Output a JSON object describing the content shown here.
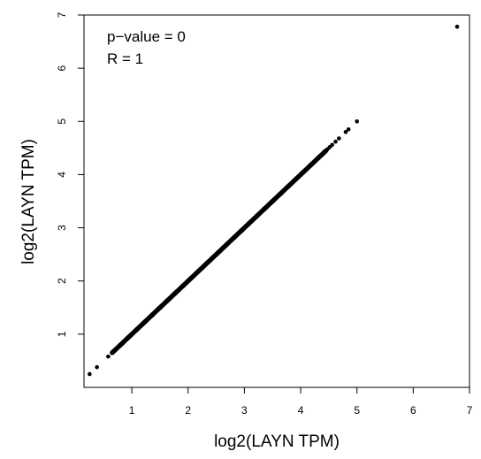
{
  "chart_data": {
    "type": "scatter",
    "title": "",
    "xlabel": "log2(LAYN TPM)",
    "ylabel": "log2(LAYN TPM)",
    "xlim": [
      0.15,
      7.0
    ],
    "ylim": [
      0.0,
      7.0
    ],
    "xticks": [
      1,
      2,
      3,
      4,
      5,
      6,
      7
    ],
    "yticks": [
      1,
      2,
      3,
      4,
      5,
      6,
      7
    ],
    "xtick_labels": [
      "1",
      "2",
      "3",
      "4",
      "5",
      "6",
      "7"
    ],
    "ytick_labels": [
      "1",
      "2",
      "3",
      "4",
      "5",
      "6",
      "7"
    ],
    "grid": false,
    "annotations": [
      "p−value = 0",
      "R = 1"
    ],
    "point_color": "#000000",
    "series": [
      {
        "dense_band": {
          "x_start": 0.65,
          "x_end": 4.45
        },
        "sparse_points": [
          {
            "x": 0.25,
            "y": 0.25
          },
          {
            "x": 0.38,
            "y": 0.38
          },
          {
            "x": 0.58,
            "y": 0.58
          },
          {
            "x": 4.48,
            "y": 4.48
          },
          {
            "x": 4.52,
            "y": 4.52
          },
          {
            "x": 4.56,
            "y": 4.56
          },
          {
            "x": 4.62,
            "y": 4.62
          },
          {
            "x": 4.68,
            "y": 4.68
          },
          {
            "x": 4.8,
            "y": 4.8
          },
          {
            "x": 4.85,
            "y": 4.85
          },
          {
            "x": 5.0,
            "y": 5.0
          },
          {
            "x": 6.78,
            "y": 6.78
          }
        ]
      }
    ]
  }
}
